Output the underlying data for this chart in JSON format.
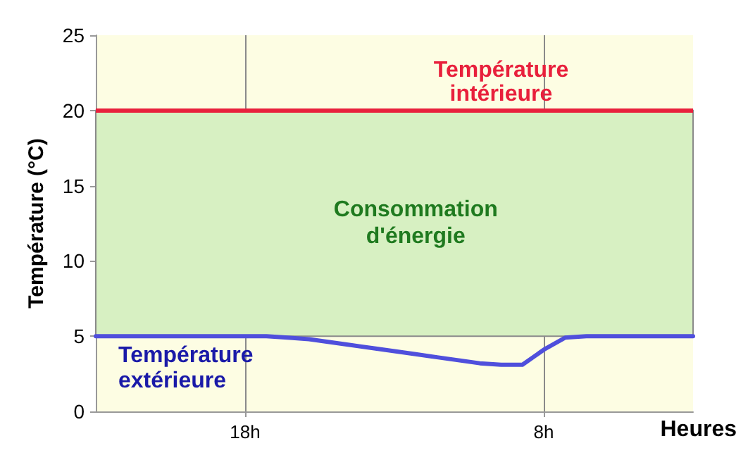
{
  "chart_data": {
    "type": "line",
    "ylabel": "Température (°C)",
    "xlabel": "Heures",
    "categories": [
      null,
      null,
      null,
      null,
      null,
      null,
      null,
      "18h",
      null,
      null,
      null,
      null,
      null,
      null,
      null,
      null,
      null,
      null,
      null,
      null,
      null,
      "8h",
      null,
      null,
      null,
      null,
      null,
      null,
      null
    ],
    "ylim": [
      0,
      25
    ],
    "yticks": [
      0,
      5,
      10,
      15,
      20,
      25
    ],
    "grid": "x",
    "marker": "none",
    "line_style": "solid",
    "series": [
      {
        "name": "Température extérieure",
        "color": "#4f4fdc",
        "values": [
          5,
          5,
          5,
          5,
          5,
          5,
          5,
          5,
          5,
          4.9,
          4.8,
          4.6,
          4.4,
          4.2,
          4,
          3.8,
          3.6,
          3.4,
          3.2,
          3.1,
          3.1,
          4.1,
          4.9,
          5,
          5,
          5,
          5,
          5,
          5
        ]
      }
    ],
    "ref_lines": [
      {
        "axis": "y",
        "value": 20,
        "label": "Température intérieure",
        "color": "#e8203c"
      }
    ],
    "bands": [
      {
        "axis": "y",
        "from": 5,
        "to": 20,
        "label": "Consommation d'énergie",
        "color": "#d7f0c2"
      }
    ]
  }
}
